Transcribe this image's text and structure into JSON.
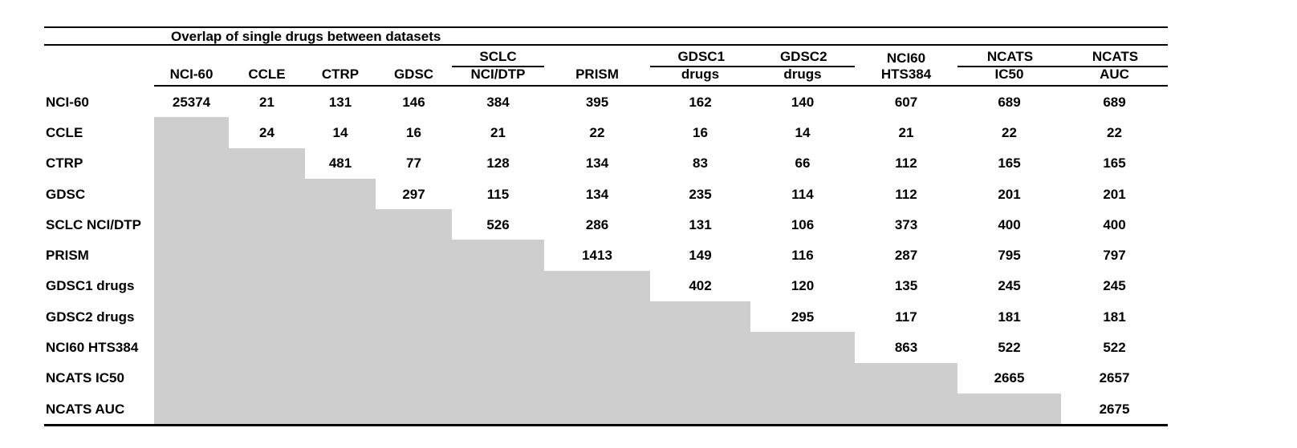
{
  "table": {
    "title": "Overlap of single drugs between datasets",
    "colors": {
      "lower_triangle_gray": "#cecece",
      "rule_black": "#000000"
    },
    "columns": [
      {
        "top": "",
        "bottom": "NCI-60"
      },
      {
        "top": "",
        "bottom": "CCLE"
      },
      {
        "top": "",
        "bottom": "CTRP"
      },
      {
        "top": "",
        "bottom": "GDSC"
      },
      {
        "top": "SCLC",
        "bottom": "NCI/DTP"
      },
      {
        "top": "",
        "bottom": "PRISM"
      },
      {
        "top": "GDSC1",
        "bottom": "drugs"
      },
      {
        "top": "GDSC2",
        "bottom": "drugs"
      },
      {
        "top": "NCI60",
        "bottom": "HTS384"
      },
      {
        "top": "NCATS",
        "bottom": "IC50"
      },
      {
        "top": "NCATS",
        "bottom": "AUC"
      }
    ],
    "rows": [
      {
        "label": "NCI-60",
        "values": [
          "25374",
          "21",
          "131",
          "146",
          "384",
          "395",
          "162",
          "140",
          "607",
          "689",
          "689"
        ]
      },
      {
        "label": "CCLE",
        "values": [
          "",
          "24",
          "14",
          "16",
          "21",
          "22",
          "16",
          "14",
          "21",
          "22",
          "22"
        ]
      },
      {
        "label": "CTRP",
        "values": [
          "",
          "",
          "481",
          "77",
          "128",
          "134",
          "83",
          "66",
          "112",
          "165",
          "165"
        ]
      },
      {
        "label": "GDSC",
        "values": [
          "",
          "",
          "",
          "297",
          "115",
          "134",
          "235",
          "114",
          "112",
          "201",
          "201"
        ]
      },
      {
        "label": "SCLC NCI/DTP",
        "values": [
          "",
          "",
          "",
          "",
          "526",
          "286",
          "131",
          "106",
          "373",
          "400",
          "400"
        ]
      },
      {
        "label": "PRISM",
        "values": [
          "",
          "",
          "",
          "",
          "",
          "1413",
          "149",
          "116",
          "287",
          "795",
          "797"
        ]
      },
      {
        "label": "GDSC1 drugs",
        "values": [
          "",
          "",
          "",
          "",
          "",
          "",
          "402",
          "120",
          "135",
          "245",
          "245"
        ]
      },
      {
        "label": "GDSC2 drugs",
        "values": [
          "",
          "",
          "",
          "",
          "",
          "",
          "",
          "295",
          "117",
          "181",
          "181"
        ]
      },
      {
        "label": "NCI60 HTS384",
        "values": [
          "",
          "",
          "",
          "",
          "",
          "",
          "",
          "",
          "863",
          "522",
          "522"
        ]
      },
      {
        "label": "NCATS IC50",
        "values": [
          "",
          "",
          "",
          "",
          "",
          "",
          "",
          "",
          "",
          "2665",
          "2657"
        ]
      },
      {
        "label": "NCATS AUC",
        "values": [
          "",
          "",
          "",
          "",
          "",
          "",
          "",
          "",
          "",
          "",
          "2675"
        ]
      }
    ]
  }
}
